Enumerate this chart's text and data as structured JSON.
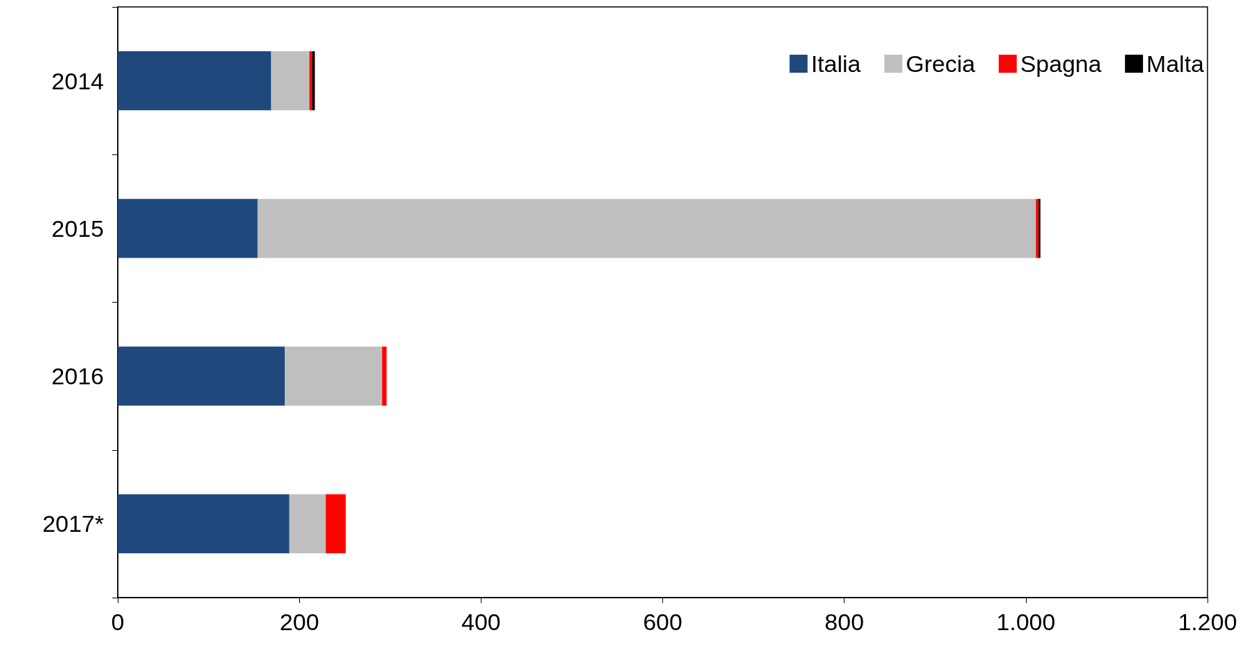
{
  "chart_data": {
    "type": "bar",
    "orientation": "horizontal",
    "stacked": true,
    "categories": [
      "2014",
      "2015",
      "2016",
      "2017*"
    ],
    "series": [
      {
        "name": "Italia",
        "color": "#1f497d",
        "values": [
          169,
          154,
          184,
          189
        ]
      },
      {
        "name": "Grecia",
        "color": "#bfbfbf",
        "values": [
          42,
          857,
          107,
          40
        ]
      },
      {
        "name": "Spagna",
        "color": "#ff0000",
        "values": [
          3,
          3,
          5,
          22
        ]
      },
      {
        "name": "Malta",
        "color": "#000000",
        "values": [
          3,
          2,
          0,
          0
        ]
      }
    ],
    "xlim": [
      0,
      1200
    ],
    "xticks": [
      0,
      200,
      400,
      600,
      800,
      {
        "value": 1000,
        "label": "1.000"
      },
      {
        "value": 1200,
        "label": "1.200"
      }
    ],
    "grid": false,
    "legend": "top right"
  }
}
